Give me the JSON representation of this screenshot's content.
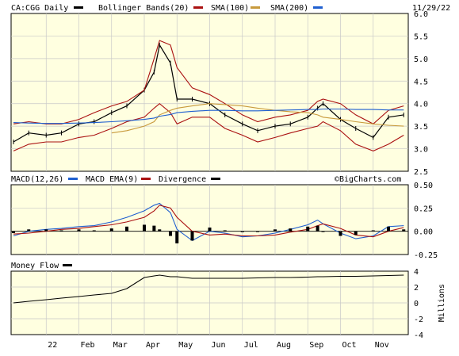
{
  "header": {
    "ticker_label": "CA:CGG Daily",
    "bollinger_label": "Bollinger Bands(20)",
    "sma100_label": "SMA(100)",
    "sma200_label": "SMA(200)",
    "date": "11/29/22"
  },
  "macd_header": {
    "macd_label": "MACD(12,26)",
    "ema_label": "MACD EMA(9)",
    "divergence_label": "Divergence",
    "watermark": "©BigCharts.com"
  },
  "money_flow_header": {
    "label": "Money Flow"
  },
  "colors": {
    "panel_background": "#ffffe0",
    "price": "#000000",
    "bollinger": "#aa1111",
    "sma100": "#c89a3c",
    "sma200": "#1f5fd0",
    "macd": "#1f5fd0",
    "macd_ema": "#aa1111",
    "divergence": "#000000",
    "money_flow": "#000000"
  },
  "chart_data": [
    {
      "type": "line",
      "panel": "price",
      "title": "CA:CGG Daily",
      "x": [
        "Dec-01",
        "Dec-15",
        "Jan-01",
        "Jan-15",
        "Feb-01",
        "Feb-15",
        "Mar-01",
        "Mar-15",
        "Apr-01",
        "Apr-10",
        "Apr-15",
        "Apr-25",
        "May-01",
        "May-15",
        "Jun-01",
        "Jun-15",
        "Jul-01",
        "Jul-15",
        "Aug-01",
        "Aug-15",
        "Sep-01",
        "Sep-10",
        "Sep-15",
        "Oct-01",
        "Oct-15",
        "Nov-01",
        "Nov-15",
        "Nov-29"
      ],
      "ylim": [
        2.5,
        6.0
      ],
      "yticks": [
        "2.5",
        "3.0",
        "3.5",
        "4.0",
        "4.5",
        "5.0",
        "5.5",
        "6.0"
      ],
      "xticks": [
        "22",
        "Feb",
        "Mar",
        "Apr",
        "May",
        "Jun",
        "Jul",
        "Aug",
        "Sep",
        "Oct",
        "Nov"
      ],
      "series": [
        {
          "name": "CA:CGG Daily",
          "values": [
            3.15,
            3.35,
            3.3,
            3.35,
            3.55,
            3.6,
            3.8,
            3.95,
            4.3,
            4.7,
            5.3,
            4.9,
            4.1,
            4.1,
            4.0,
            3.75,
            3.55,
            3.4,
            3.5,
            3.55,
            3.7,
            3.9,
            4.0,
            3.65,
            3.45,
            3.25,
            3.7,
            3.75
          ]
        },
        {
          "name": "Bollinger Bands(20)",
          "values": [
            3.55,
            3.6,
            3.55,
            3.55,
            3.65,
            3.8,
            3.95,
            4.05,
            4.3,
            5.0,
            5.4,
            5.3,
            4.8,
            4.35,
            4.2,
            4.0,
            3.75,
            3.6,
            3.7,
            3.75,
            3.85,
            4.05,
            4.1,
            4.0,
            3.75,
            3.55,
            3.85,
            3.95
          ]
        },
        {
          "name": "Bollinger Bands(20)",
          "values": [
            2.95,
            3.1,
            3.15,
            3.15,
            3.25,
            3.3,
            3.45,
            3.6,
            3.7,
            3.9,
            4.0,
            3.8,
            3.55,
            3.7,
            3.7,
            3.45,
            3.3,
            3.15,
            3.25,
            3.35,
            3.45,
            3.5,
            3.6,
            3.4,
            3.1,
            2.95,
            3.1,
            3.3
          ]
        },
        {
          "name": "SMA(100)",
          "values": [
            null,
            null,
            null,
            null,
            null,
            null,
            3.35,
            3.4,
            3.5,
            3.6,
            3.75,
            3.85,
            3.9,
            3.95,
            4.0,
            3.98,
            3.95,
            3.9,
            3.85,
            3.82,
            3.8,
            3.75,
            3.7,
            3.65,
            3.6,
            3.55,
            3.52,
            3.5
          ]
        },
        {
          "name": "SMA(200)",
          "values": [
            3.58,
            3.57,
            3.56,
            3.56,
            3.57,
            3.58,
            3.6,
            3.62,
            3.65,
            3.68,
            3.72,
            3.76,
            3.8,
            3.83,
            3.85,
            3.85,
            3.84,
            3.84,
            3.85,
            3.86,
            3.87,
            3.87,
            3.88,
            3.88,
            3.87,
            3.87,
            3.86,
            3.86
          ]
        }
      ]
    },
    {
      "type": "line",
      "panel": "macd",
      "title": "MACD(12,26)",
      "x": [
        "Dec-01",
        "Dec-15",
        "Jan-01",
        "Jan-15",
        "Feb-01",
        "Feb-15",
        "Mar-01",
        "Mar-15",
        "Apr-01",
        "Apr-10",
        "Apr-15",
        "Apr-25",
        "May-01",
        "May-15",
        "Jun-01",
        "Jun-15",
        "Jul-01",
        "Jul-15",
        "Aug-01",
        "Aug-15",
        "Sep-01",
        "Sep-10",
        "Sep-15",
        "Oct-01",
        "Oct-15",
        "Nov-01",
        "Nov-15",
        "Nov-29"
      ],
      "ylim": [
        -0.25,
        0.5
      ],
      "yticks": [
        "-0.25",
        "0.00",
        "0.25",
        "0.50"
      ],
      "series": [
        {
          "name": "MACD(12,26)",
          "values": [
            -0.05,
            0.0,
            0.02,
            0.03,
            0.05,
            0.06,
            0.1,
            0.15,
            0.22,
            0.28,
            0.3,
            0.2,
            0.02,
            -0.1,
            0.0,
            -0.02,
            -0.06,
            -0.05,
            -0.02,
            0.02,
            0.07,
            0.12,
            0.08,
            -0.02,
            -0.08,
            -0.05,
            0.05,
            0.06
          ]
        },
        {
          "name": "MACD EMA(9)",
          "values": [
            -0.03,
            -0.02,
            0.0,
            0.02,
            0.03,
            0.05,
            0.07,
            0.1,
            0.15,
            0.22,
            0.28,
            0.25,
            0.15,
            0.0,
            -0.04,
            -0.03,
            -0.05,
            -0.05,
            -0.04,
            -0.01,
            0.02,
            0.06,
            0.08,
            0.03,
            -0.04,
            -0.06,
            0.0,
            0.04
          ]
        },
        {
          "name": "Divergence",
          "values": [
            -0.02,
            0.02,
            0.02,
            0.01,
            0.02,
            0.01,
            0.03,
            0.05,
            0.07,
            0.06,
            0.02,
            -0.05,
            -0.13,
            -0.1,
            0.04,
            0.01,
            -0.01,
            0.0,
            0.02,
            0.03,
            0.05,
            0.06,
            0.0,
            -0.05,
            -0.04,
            0.01,
            0.05,
            0.02
          ]
        }
      ]
    },
    {
      "type": "line",
      "panel": "money_flow",
      "title": "Money Flow",
      "x": [
        "Dec-01",
        "Dec-15",
        "Jan-01",
        "Jan-15",
        "Feb-01",
        "Feb-15",
        "Mar-01",
        "Mar-15",
        "Apr-01",
        "Apr-10",
        "Apr-15",
        "Apr-25",
        "May-01",
        "May-15",
        "Jun-01",
        "Jun-15",
        "Jul-01",
        "Jul-15",
        "Aug-01",
        "Aug-15",
        "Sep-01",
        "Sep-10",
        "Sep-15",
        "Oct-01",
        "Oct-15",
        "Nov-01",
        "Nov-15",
        "Nov-29"
      ],
      "ylim": [
        -4,
        4
      ],
      "yticks": [
        "-4",
        "-2",
        "0",
        "2",
        "4"
      ],
      "ylabel": "Millions",
      "series": [
        {
          "name": "Money Flow",
          "values": [
            0.0,
            0.2,
            0.4,
            0.6,
            0.8,
            1.0,
            1.2,
            1.8,
            3.2,
            3.4,
            3.5,
            3.3,
            3.3,
            3.1,
            3.1,
            3.1,
            3.1,
            3.15,
            3.2,
            3.2,
            3.25,
            3.3,
            3.3,
            3.35,
            3.35,
            3.4,
            3.45,
            3.5
          ]
        }
      ]
    }
  ]
}
